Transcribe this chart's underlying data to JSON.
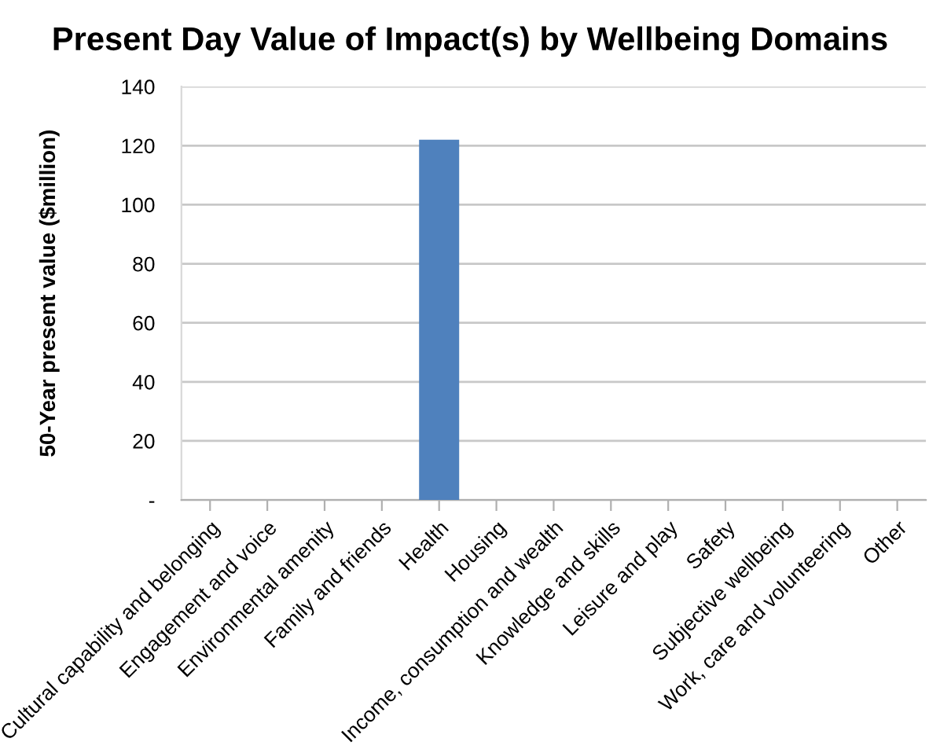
{
  "chart_data": {
    "type": "bar",
    "title": "Present Day Value of Impact(s) by Wellbeing Domains",
    "ylabel": "50-Year present value ($million)",
    "categories": [
      "Cultural capability and belonging",
      "Engagement and voice",
      "Environmental amenity",
      "Family and friends",
      "Health",
      "Housing",
      "Income, consumption and wealth",
      "Knowledge and skills",
      "Leisure and play",
      "Safety",
      "Subjective wellbeing",
      "Work, care and volunteering",
      "Other"
    ],
    "values": [
      0,
      0,
      0,
      0,
      122,
      0,
      0,
      0,
      0,
      0,
      0,
      0,
      0
    ],
    "color": "#4f81bd",
    "ylim": [
      0,
      140
    ],
    "yticks": [
      {
        "value": 0,
        "label": "-"
      },
      20,
      40,
      60,
      80,
      100,
      120,
      140
    ],
    "grid": "y"
  }
}
